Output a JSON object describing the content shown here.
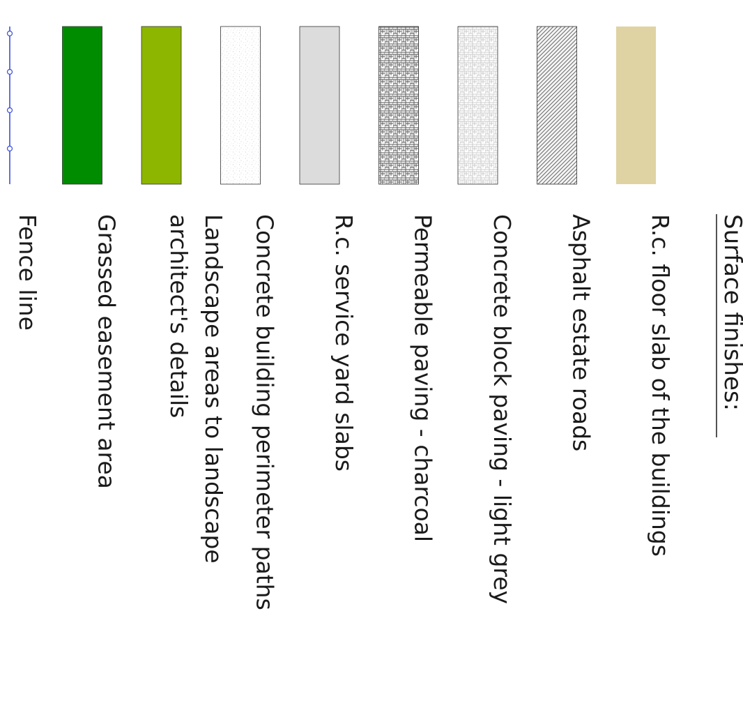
{
  "legend": {
    "title": "Surface finishes:",
    "items": [
      {
        "key": "rc-floor-slab",
        "label_lines": [
          "R.c. floor slab of the buildings"
        ],
        "fill": "#dfd3a3",
        "pattern": "solid"
      },
      {
        "key": "asphalt-estate-roads",
        "label_lines": [
          "Asphalt estate roads"
        ],
        "fill": "#ffffff",
        "pattern": "diagonal-hatch"
      },
      {
        "key": "concrete-block-paving-light-grey",
        "label_lines": [
          "Concrete block paving - light grey"
        ],
        "fill": "#ffffff",
        "pattern": "herringbone-light"
      },
      {
        "key": "permeable-paving-charcoal",
        "label_lines": [
          "Permeable paving - charcoal"
        ],
        "fill": "#ffffff",
        "pattern": "herringbone-dark"
      },
      {
        "key": "rc-service-yard-slabs",
        "label_lines": [
          "R.c. service yard slabs"
        ],
        "fill": "#dcdcdc",
        "pattern": "solid"
      },
      {
        "key": "concrete-building-perimeter-paths",
        "label_lines": [
          "Concrete building perimeter paths"
        ],
        "fill": "#ffffff",
        "pattern": "speckle"
      },
      {
        "key": "landscape-areas",
        "label_lines": [
          "Landscape areas to landscape",
          "architect's details"
        ],
        "fill": "#8db600",
        "pattern": "solid"
      },
      {
        "key": "grassed-easement-area",
        "label_lines": [
          "Grassed easement area"
        ],
        "fill": "#008c00",
        "pattern": "solid"
      },
      {
        "key": "fence-line",
        "label_lines": [
          "Fence line"
        ],
        "fill": "#3b4fd8",
        "pattern": "fence"
      }
    ]
  }
}
